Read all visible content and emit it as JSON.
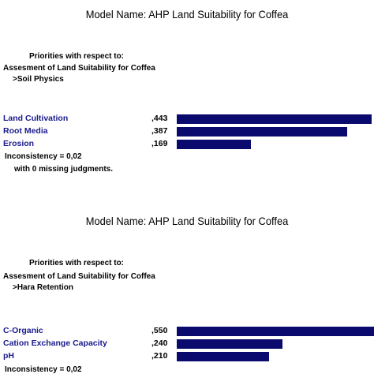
{
  "chart_data": [
    {
      "type": "bar",
      "model_name": "Model Name: AHP Land Suitability for Coffea",
      "priorities_heading": "Priorities with respect to:",
      "goal": "Assesment of Land Suitability for Coffea",
      "criterion": ">Soil Physics",
      "categories": [
        "Land Cultivation",
        "Root Media",
        "Erosion"
      ],
      "values": [
        0.443,
        0.387,
        0.169
      ],
      "value_labels": [
        ",443",
        ",387",
        ",169"
      ],
      "inconsistency": "Inconsistency = 0,02",
      "missing": "with 0  missing judgments.",
      "bar_color": "#0a0a6e",
      "label_color": "#1a1a8c"
    },
    {
      "type": "bar",
      "model_name": "Model Name: AHP Land Suitability for Coffea",
      "priorities_heading": "Priorities with respect to:",
      "goal": "Assesment of Land Suitability for Coffea",
      "criterion": ">Hara Retention",
      "categories": [
        "C-Organic",
        "Cation Exchange Capacity",
        "pH"
      ],
      "values": [
        0.55,
        0.24,
        0.21
      ],
      "value_labels": [
        ",550",
        ",240",
        ",210"
      ],
      "inconsistency": "Inconsistency = 0,02",
      "bar_color": "#0a0a6e",
      "label_color": "#1a1a8c"
    }
  ]
}
